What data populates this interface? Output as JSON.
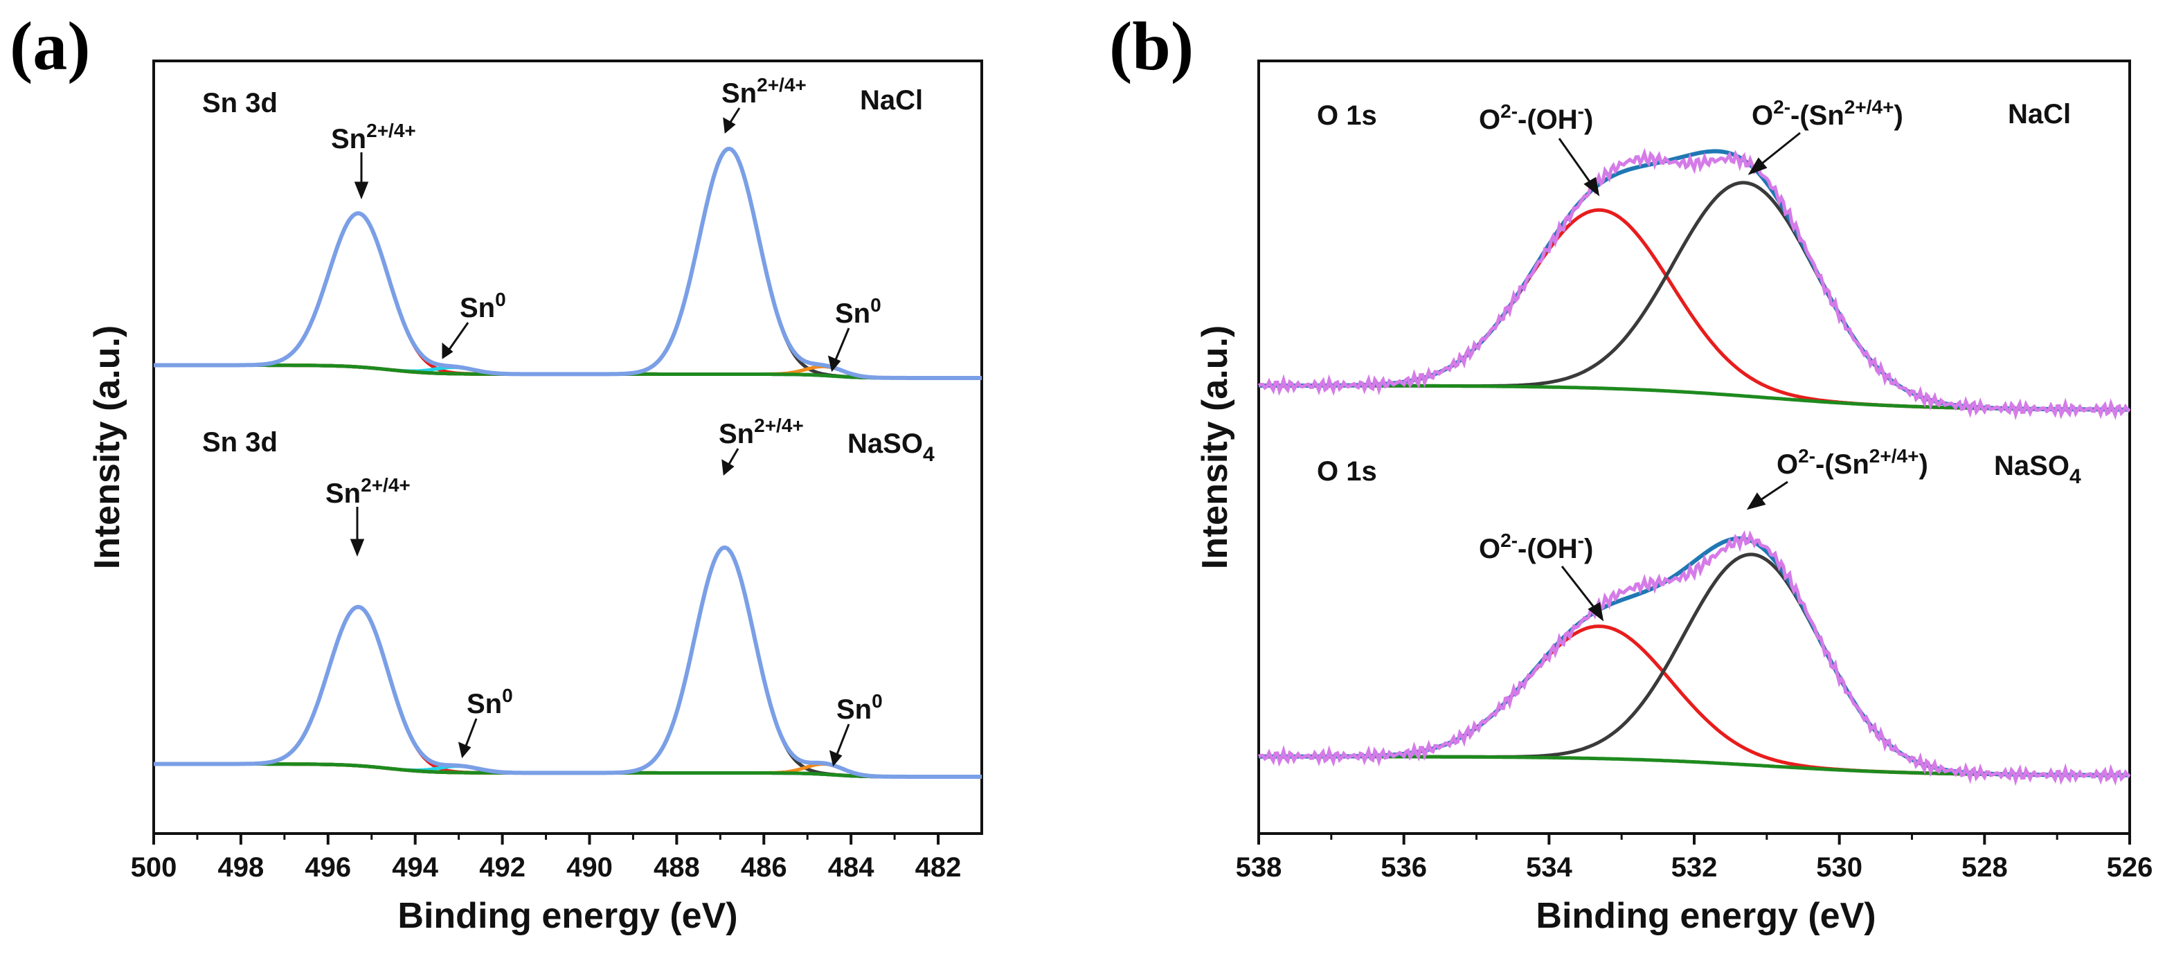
{
  "chart_data": [
    {
      "panel": "(a)",
      "type": "line",
      "title": "",
      "xlabel": "Binding energy (eV)",
      "ylabel": "Intensity (a.u.)",
      "xlim": [
        500,
        481
      ],
      "xticks": [
        500,
        498,
        496,
        494,
        492,
        490,
        488,
        486,
        484,
        482
      ],
      "x_reversed": true,
      "y_units": "arbitrary",
      "subplots": [
        {
          "sample": "NaCl",
          "core_level": "Sn 3d",
          "peaks": [
            {
              "label": "Sn2+/4+",
              "center_eV": 495.3,
              "height": 0.6,
              "fwhm": 1.6,
              "color": "#e81d1d"
            },
            {
              "label": "Sn0",
              "center_eV": 493.1,
              "height": 0.025,
              "fwhm": 1.1,
              "color": "#22d3e6"
            },
            {
              "label": "Sn2+/4+",
              "center_eV": 486.8,
              "height": 0.88,
              "fwhm": 1.6,
              "color": "#3a3a3a"
            },
            {
              "label": "Sn0",
              "center_eV": 484.6,
              "height": 0.035,
              "fwhm": 1.0,
              "color": "#f08a1c"
            }
          ],
          "background": {
            "high_eV_level": 0.05,
            "low_eV_level": 0.0,
            "step_center_eV": 494.6,
            "second_step_center_eV": 484.4,
            "mid_level": 0.015,
            "color": "#1e8a1e"
          },
          "envelope_color": "#7a9fe6",
          "labels": {
            "core": "Sn 3d",
            "sample": "NaCl",
            "peak1": "Sn",
            "peak1_sup": "2+/4+",
            "peak2": "Sn",
            "peak2_sup": "0",
            "peak3": "Sn",
            "peak3_sup": "2+/4+",
            "peak4": "Sn",
            "peak4_sup": "0"
          }
        },
        {
          "sample": "NaSO4",
          "core_level": "Sn 3d",
          "peaks": [
            {
              "label": "Sn2+/4+",
              "center_eV": 495.3,
              "height": 0.62,
              "fwhm": 1.6,
              "color": "#e81d1d"
            },
            {
              "label": "Sn0",
              "center_eV": 493.0,
              "height": 0.025,
              "fwhm": 1.1,
              "color": "#22d3e6"
            },
            {
              "label": "Sn2+/4+",
              "center_eV": 486.9,
              "height": 0.88,
              "fwhm": 1.6,
              "color": "#3a3a3a"
            },
            {
              "label": "Sn0",
              "center_eV": 484.6,
              "height": 0.04,
              "fwhm": 1.0,
              "color": "#f08a1c"
            }
          ],
          "background": {
            "high_eV_level": 0.05,
            "low_eV_level": 0.0,
            "step_center_eV": 494.6,
            "second_step_center_eV": 484.4,
            "mid_level": 0.015,
            "color": "#1e8a1e"
          },
          "envelope_color": "#7a9fe6",
          "labels": {
            "core": "Sn 3d",
            "sample": "NaSO",
            "sample_sub": "4",
            "peak1": "Sn",
            "peak1_sup": "2+/4+",
            "peak2": "Sn",
            "peak2_sup": "0",
            "peak3": "Sn",
            "peak3_sup": "2+/4+",
            "peak4": "Sn",
            "peak4_sup": "0"
          }
        }
      ]
    },
    {
      "panel": "(b)",
      "type": "line",
      "title": "",
      "xlabel": "Binding energy (eV)",
      "ylabel": "Intensity (a.u.)",
      "xlim": [
        538,
        526
      ],
      "xticks": [
        538,
        536,
        534,
        532,
        530,
        528,
        526
      ],
      "x_reversed": true,
      "y_units": "arbitrary",
      "subplots": [
        {
          "sample": "NaCl",
          "core_level": "O 1s",
          "peaks": [
            {
              "label": "O2--(OH-)",
              "center_eV": 533.3,
              "height": 0.66,
              "fwhm": 2.3,
              "color": "#e81d1d"
            },
            {
              "label": "O2--(Sn2+/4+)",
              "center_eV": 531.3,
              "height": 0.79,
              "fwhm": 2.3,
              "color": "#3a3a3a"
            }
          ],
          "background": {
            "high_eV_level": 0.09,
            "low_eV_level": 0.0,
            "step_center_eV": 531.0,
            "color": "#1e8a1e"
          },
          "envelope_color": "#1f78b4",
          "raw_color": "#d57be8",
          "labels": {
            "core": "O 1s",
            "sample": "NaCl",
            "peakA_pre": "O",
            "peakA_sup": "2-",
            "peakA_mid": "-(OH",
            "peakA_sup2": "-",
            "peakA_post": ")",
            "peakB_pre": "O",
            "peakB_sup": "2-",
            "peakB_mid": "-(Sn",
            "peakB_sup2": "2+/4+",
            "peakB_post": ")"
          }
        },
        {
          "sample": "NaSO4",
          "core_level": "O 1s",
          "peaks": [
            {
              "label": "O2--(OH-)",
              "center_eV": 533.3,
              "height": 0.49,
              "fwhm": 2.3,
              "color": "#e81d1d"
            },
            {
              "label": "O2--(Sn2+/4+)",
              "center_eV": 531.2,
              "height": 0.78,
              "fwhm": 2.2,
              "color": "#3a3a3a"
            }
          ],
          "background": {
            "high_eV_level": 0.07,
            "low_eV_level": 0.0,
            "step_center_eV": 531.0,
            "color": "#1e8a1e"
          },
          "envelope_color": "#1f78b4",
          "raw_color": "#d57be8",
          "labels": {
            "core": "O 1s",
            "sample": "NaSO",
            "sample_sub": "4",
            "peakA_pre": "O",
            "peakA_sup": "2-",
            "peakA_mid": "-(OH",
            "peakA_sup2": "-",
            "peakA_post": ")",
            "peakB_pre": "O",
            "peakB_sup": "2-",
            "peakB_mid": "-(Sn",
            "peakB_sup2": "2+/4+",
            "peakB_post": ")"
          }
        }
      ]
    }
  ],
  "panel_labels": {
    "a": "(a)",
    "b": "(b)"
  }
}
